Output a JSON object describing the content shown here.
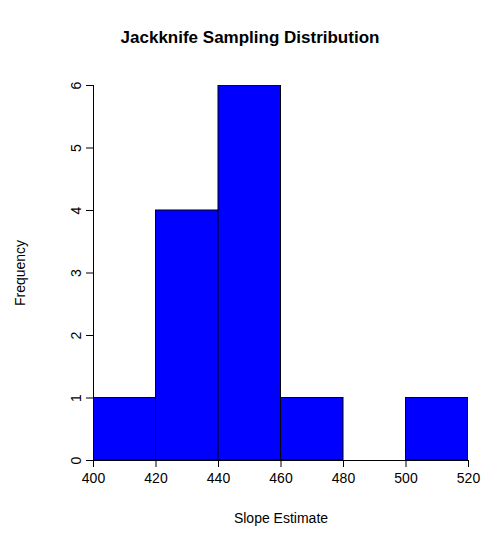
{
  "chart_data": {
    "type": "histogram",
    "title": "Jackknife Sampling Distribution",
    "x_label": "Slope Estimate",
    "y_label": "Frequency",
    "bins": [
      400,
      420,
      440,
      460,
      480,
      500,
      520
    ],
    "values": [
      1,
      4,
      6,
      1,
      0,
      1
    ],
    "color": "#0000ff",
    "xlim": [
      400,
      520
    ],
    "xticks": [
      400,
      420,
      440,
      460,
      480,
      500,
      520
    ],
    "ylim": [
      0,
      6
    ],
    "yticks": [
      0,
      1,
      2,
      3,
      4,
      5,
      6
    ],
    "grid": false
  }
}
